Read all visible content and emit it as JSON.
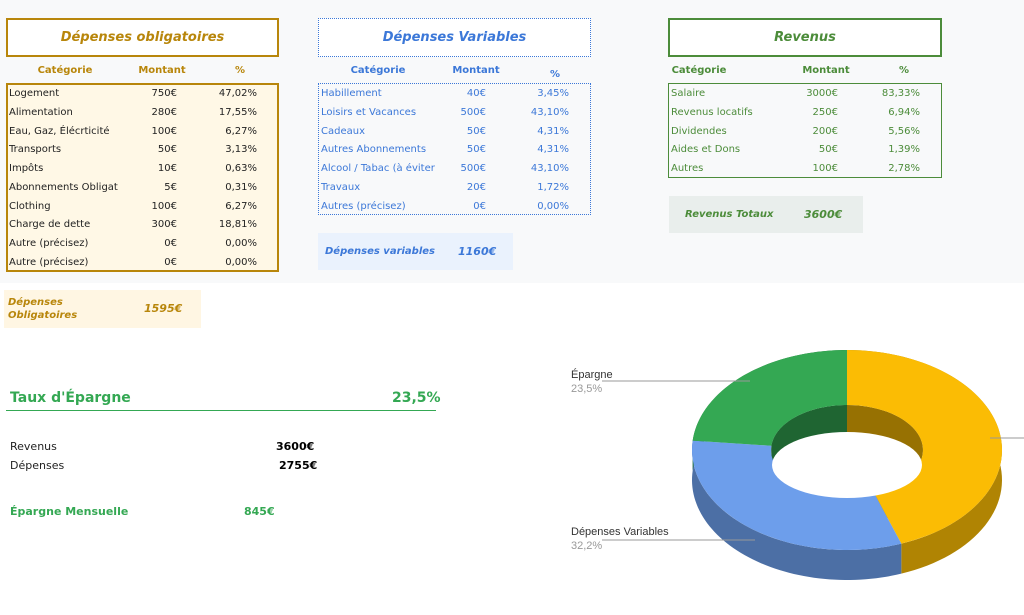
{
  "obligatoires": {
    "title": "Dépenses obligatoires",
    "headers": [
      "Catégorie",
      "Montant",
      "%"
    ],
    "rows": [
      {
        "cat": "Logement",
        "montant": "750€",
        "pct": "47,02%"
      },
      {
        "cat": "Alimentation",
        "montant": "280€",
        "pct": "17,55%"
      },
      {
        "cat": "Eau, Gaz, Élécrticité",
        "montant": "100€",
        "pct": "6,27%"
      },
      {
        "cat": "Transports",
        "montant": "50€",
        "pct": "3,13%"
      },
      {
        "cat": "Impôts",
        "montant": "10€",
        "pct": "0,63%"
      },
      {
        "cat": "Abonnements Obligat",
        "montant": "5€",
        "pct": "0,31%"
      },
      {
        "cat": "Clothing",
        "montant": "100€",
        "pct": "6,27%"
      },
      {
        "cat": "Charge de dette",
        "montant": "300€",
        "pct": "18,81%"
      },
      {
        "cat": "Autre (précisez)",
        "montant": "0€",
        "pct": "0,00%"
      },
      {
        "cat": "Autre (précisez)",
        "montant": "0€",
        "pct": "0,00%"
      }
    ],
    "total_label_1": "Dépenses",
    "total_label_2": "Obligatoires",
    "total_value": "1595€"
  },
  "variables": {
    "title": "Dépenses Variables",
    "headers": [
      "Catégorie",
      "Montant",
      "%"
    ],
    "rows": [
      {
        "cat": "Habillement",
        "montant": "40€",
        "pct": "3,45%"
      },
      {
        "cat": "Loisirs et Vacances",
        "montant": "500€",
        "pct": "43,10%"
      },
      {
        "cat": "Cadeaux",
        "montant": "50€",
        "pct": "4,31%"
      },
      {
        "cat": "Autres Abonnements",
        "montant": "50€",
        "pct": "4,31%"
      },
      {
        "cat": "Alcool / Tabac (à éviter",
        "montant": "500€",
        "pct": "43,10%"
      },
      {
        "cat": "Travaux",
        "montant": "20€",
        "pct": "1,72%"
      },
      {
        "cat": "Autres  (précisez)",
        "montant": "0€",
        "pct": "0,00%"
      }
    ],
    "total_label": "Dépenses variables",
    "total_value": "1160€"
  },
  "revenus": {
    "title": "Revenus",
    "headers": [
      "Catégorie",
      "Montant",
      "%"
    ],
    "rows": [
      {
        "cat": "Salaire",
        "montant": "3000€",
        "pct": "83,33%"
      },
      {
        "cat": "Revenus locatifs",
        "montant": "250€",
        "pct": "6,94%"
      },
      {
        "cat": "Dividendes",
        "montant": "200€",
        "pct": "5,56%"
      },
      {
        "cat": "Aides et Dons",
        "montant": "50€",
        "pct": "1,39%"
      },
      {
        "cat": "Autres",
        "montant": "100€",
        "pct": "2,78%"
      }
    ],
    "total_label": "Revenus Totaux",
    "total_value": "3600€"
  },
  "summary": {
    "taux_label": "Taux d'Épargne",
    "taux_value": "23,5%",
    "revenus_label": "Revenus",
    "revenus_value": "3600€",
    "depenses_label": "Dépenses",
    "depenses_value": "2755€",
    "epargne_label": "Épargne Mensuelle",
    "epargne_value": "845€"
  },
  "chart_data": {
    "type": "pie",
    "style": "3d-donut",
    "slices": [
      {
        "label": "Épargne",
        "pct_label": "23,5%",
        "value": 23.5,
        "color": "#34a853"
      },
      {
        "label": "Dépenses Variables",
        "pct_label": "32,2%",
        "value": 32.2,
        "color": "#6d9eeb"
      },
      {
        "label": "",
        "pct_label": "",
        "value": 44.3,
        "color": "#fbbc04"
      }
    ]
  },
  "colors": {
    "gold": "#b8860b",
    "blue": "#3c78d8",
    "green": "#4c8c3a"
  }
}
